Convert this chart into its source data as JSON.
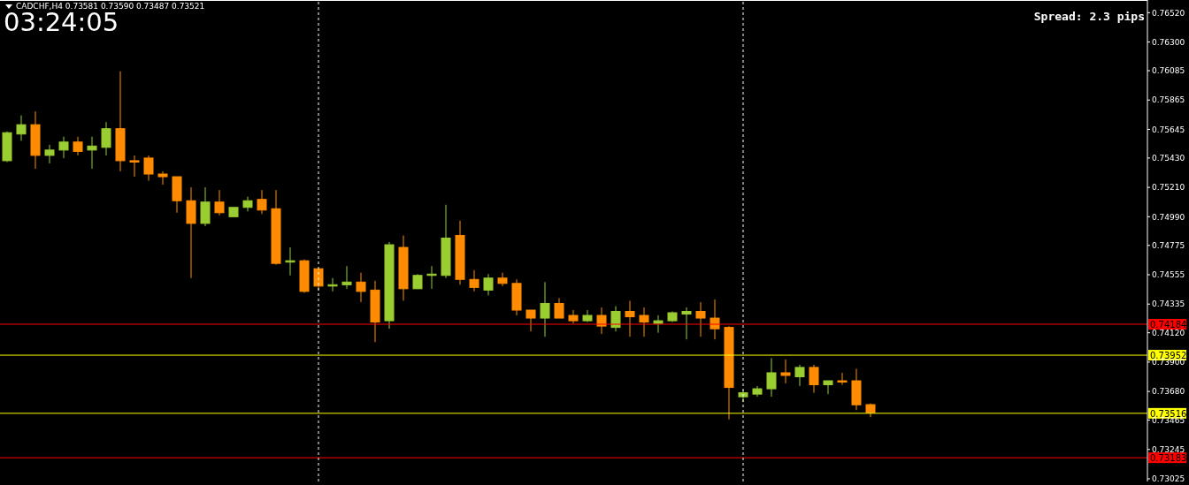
{
  "chart_data": {
    "type": "candlestick",
    "title": "CADCHF,H4  0.73581 0.73590 0.73487 0.73521",
    "annotations": [
      "03:24:05",
      "Spread: 2.3 pips"
    ],
    "categories": [
      null,
      null,
      null,
      null,
      null,
      null,
      null,
      null,
      null,
      null,
      null,
      null,
      null,
      null,
      null,
      null,
      null,
      null,
      null,
      null,
      null,
      null,
      null,
      null,
      null,
      null,
      null,
      null,
      null,
      null,
      null,
      null,
      null,
      null,
      null,
      null,
      null,
      null,
      null,
      null,
      null,
      null,
      null,
      null,
      null,
      null,
      null,
      null,
      null,
      null,
      null,
      null,
      null,
      null,
      null,
      null,
      null,
      null,
      null,
      null,
      null,
      null,
      null,
      null,
      null,
      null,
      null,
      null,
      null,
      null,
      null,
      null,
      null,
      null,
      null,
      null,
      null,
      null,
      null,
      null,
      null
    ],
    "ohlc": [
      [
        0.7541,
        0.7563,
        0.754,
        0.7562
      ],
      [
        0.7561,
        0.7575,
        0.7556,
        0.7568
      ],
      [
        0.7568,
        0.7578,
        0.7535,
        0.7545
      ],
      [
        0.7545,
        0.7553,
        0.7539,
        0.7549
      ],
      [
        0.7549,
        0.7559,
        0.7543,
        0.7555
      ],
      [
        0.7555,
        0.7559,
        0.7545,
        0.7548
      ],
      [
        0.7549,
        0.7559,
        0.7535,
        0.7552
      ],
      [
        0.7551,
        0.757,
        0.7545,
        0.7565
      ],
      [
        0.7565,
        0.7608,
        0.7533,
        0.7541
      ],
      [
        0.7541,
        0.7545,
        0.7529,
        0.754
      ],
      [
        0.7543,
        0.7545,
        0.7526,
        0.7531
      ],
      [
        0.7531,
        0.7533,
        0.7523,
        0.7529
      ],
      [
        0.7529,
        0.7529,
        0.7502,
        0.7511
      ],
      [
        0.7511,
        0.7521,
        0.7453,
        0.7494
      ],
      [
        0.7494,
        0.7521,
        0.7492,
        0.751
      ],
      [
        0.751,
        0.7519,
        0.75,
        0.7502
      ],
      [
        0.7499,
        0.7506,
        0.7499,
        0.7506
      ],
      [
        0.7506,
        0.7514,
        0.7503,
        0.7511
      ],
      [
        0.7512,
        0.7519,
        0.7501,
        0.7504
      ],
      [
        0.7505,
        0.7519,
        0.7463,
        0.7464
      ],
      [
        0.7465,
        0.7476,
        0.7455,
        0.7466
      ],
      [
        0.7466,
        0.7467,
        0.7442,
        0.7443
      ],
      [
        0.746,
        0.746,
        0.7444,
        0.7447
      ],
      [
        0.7447,
        0.7453,
        0.7443,
        0.7448
      ],
      [
        0.7448,
        0.7462,
        0.7445,
        0.745
      ],
      [
        0.745,
        0.7457,
        0.7435,
        0.7443
      ],
      [
        0.7444,
        0.7451,
        0.7405,
        0.742
      ],
      [
        0.7421,
        0.748,
        0.7415,
        0.7478
      ],
      [
        0.7476,
        0.7485,
        0.7436,
        0.7445
      ],
      [
        0.7445,
        0.7456,
        0.7445,
        0.7455
      ],
      [
        0.7455,
        0.7462,
        0.7445,
        0.7456
      ],
      [
        0.7455,
        0.7508,
        0.7453,
        0.7483
      ],
      [
        0.7485,
        0.7496,
        0.7448,
        0.7452
      ],
      [
        0.7452,
        0.7459,
        0.7443,
        0.7446
      ],
      [
        0.7444,
        0.7456,
        0.744,
        0.7453
      ],
      [
        0.7453,
        0.7457,
        0.7447,
        0.7449
      ],
      [
        0.7449,
        0.7452,
        0.7425,
        0.7429
      ],
      [
        0.7429,
        0.7429,
        0.7413,
        0.7423
      ],
      [
        0.7423,
        0.745,
        0.7409,
        0.7434
      ],
      [
        0.7434,
        0.7438,
        0.7423,
        0.7423
      ],
      [
        0.7425,
        0.7429,
        0.7419,
        0.7421
      ],
      [
        0.7421,
        0.7429,
        0.742,
        0.7425
      ],
      [
        0.7425,
        0.7431,
        0.7411,
        0.7417
      ],
      [
        0.7416,
        0.7432,
        0.7413,
        0.7428
      ],
      [
        0.7428,
        0.7436,
        0.7409,
        0.7424
      ],
      [
        0.7425,
        0.7431,
        0.7409,
        0.742
      ],
      [
        0.7419,
        0.7425,
        0.7412,
        0.7421
      ],
      [
        0.7421,
        0.7428,
        0.742,
        0.7427
      ],
      [
        0.7426,
        0.7431,
        0.7407,
        0.7428
      ],
      [
        0.7428,
        0.7435,
        0.7409,
        0.7423
      ],
      [
        0.7423,
        0.7437,
        0.7407,
        0.7415
      ],
      [
        0.7416,
        0.7417,
        0.7347,
        0.7371
      ],
      [
        0.7364,
        0.7369,
        0.736,
        0.7367
      ],
      [
        0.7366,
        0.7372,
        0.7364,
        0.737
      ],
      [
        0.737,
        0.7393,
        0.7364,
        0.7382
      ],
      [
        0.7382,
        0.7392,
        0.7374,
        0.738
      ],
      [
        0.7379,
        0.7388,
        0.7372,
        0.7386
      ],
      [
        0.7386,
        0.7388,
        0.7367,
        0.7373
      ],
      [
        0.7373,
        0.7376,
        0.7366,
        0.7376
      ],
      [
        0.7376,
        0.7382,
        0.7373,
        0.7375
      ],
      [
        0.7376,
        0.7385,
        0.7354,
        0.7358
      ],
      [
        0.73581,
        0.7359,
        0.73487,
        0.73521
      ],
      null,
      null,
      null,
      null,
      null,
      null,
      null,
      null,
      null,
      null,
      null,
      null,
      null,
      null,
      null,
      null,
      null,
      null,
      null
    ],
    "colors": [
      "#9acd32",
      "#9acd32",
      "#ff8c00",
      "#9acd32",
      "#9acd32",
      "#ff8c00",
      "#9acd32",
      "#9acd32",
      "#ff8c00",
      "#ff8c00",
      "#ff8c00",
      "#ff8c00",
      "#ff8c00",
      "#ff8c00",
      "#9acd32",
      "#ff8c00",
      "#9acd32",
      "#9acd32",
      "#ff8c00",
      "#ff8c00",
      "#9acd32",
      "#ff8c00",
      "#ff8c00",
      "#9acd32",
      "#9acd32",
      "#ff8c00",
      "#ff8c00",
      "#9acd32",
      "#ff8c00",
      "#9acd32",
      "#9acd32",
      "#9acd32",
      "#ff8c00",
      "#ff8c00",
      "#9acd32",
      "#ff8c00",
      "#ff8c00",
      "#ff8c00",
      "#9acd32",
      "#ff8c00",
      "#ff8c00",
      "#9acd32",
      "#ff8c00",
      "#9acd32",
      "#ff8c00",
      "#ff8c00",
      "#9acd32",
      "#9acd32",
      "#9acd32",
      "#ff8c00",
      "#ff8c00",
      "#ff8c00",
      "#9acd32",
      "#9acd32",
      "#9acd32",
      "#ff8c00",
      "#9acd32",
      "#ff8c00",
      "#9acd32",
      "#ff8c00",
      "#ff8c00",
      "#ff8c00",
      null,
      null,
      null,
      null,
      null,
      null,
      null,
      null,
      null,
      null,
      null,
      null,
      null,
      null,
      null,
      null,
      null,
      null,
      null
    ],
    "ylim": [
      0.73005,
      0.76615
    ],
    "yticks": [
      {
        "value": 0.7652,
        "label": "0.76520"
      },
      {
        "value": 0.763,
        "label": "0.76300"
      },
      0.76085,
      0.75865,
      0.75645,
      {
        "value": 0.7543,
        "label": "0.75430"
      },
      {
        "value": 0.7521,
        "label": "0.75210"
      },
      {
        "value": 0.7499,
        "label": "0.74990"
      },
      0.74775,
      0.74555,
      0.74335,
      {
        "value": 0.7412,
        "label": "0.74120"
      },
      {
        "value": 0.739,
        "label": "0.73900"
      },
      {
        "value": 0.7368,
        "label": "0.73680"
      },
      0.73465,
      0.73245,
      0.73025
    ],
    "ref_lines": [
      {
        "axis": "y",
        "value": 0.74184,
        "label": "0.74184",
        "color": "#ff0000"
      },
      {
        "axis": "y",
        "value": 0.73952,
        "label": "0.73952",
        "color": "#ffff00"
      },
      {
        "axis": "y",
        "value": 0.73516,
        "label": "0.73516",
        "color": "#ffff00"
      },
      {
        "axis": "y",
        "value": 0.73183,
        "label": "0.73183",
        "color": "#ff0000"
      }
    ]
  }
}
